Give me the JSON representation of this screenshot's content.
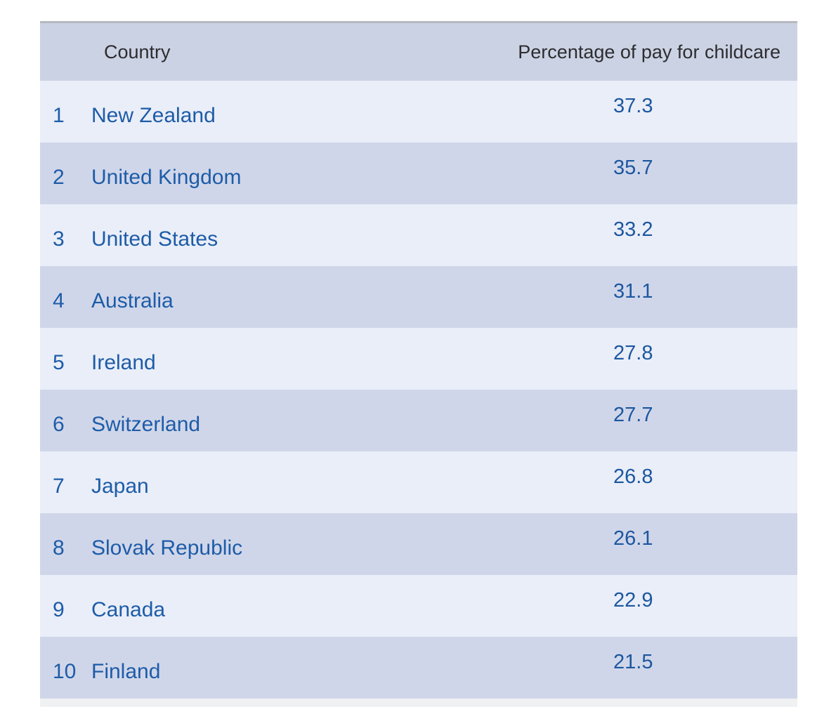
{
  "table": {
    "columns": [
      "Country",
      "Percentage of pay for childcare"
    ],
    "rows": [
      {
        "rank": "1",
        "country": "New Zealand",
        "value": "37.3"
      },
      {
        "rank": "2",
        "country": "United Kingdom",
        "value": "35.7"
      },
      {
        "rank": "3",
        "country": "United States",
        "value": "33.2"
      },
      {
        "rank": "4",
        "country": "Australia",
        "value": "31.1"
      },
      {
        "rank": "5",
        "country": "Ireland",
        "value": "27.8"
      },
      {
        "rank": "6",
        "country": "Switzerland",
        "value": "27.7"
      },
      {
        "rank": "7",
        "country": "Japan",
        "value": "26.8"
      },
      {
        "rank": "8",
        "country": "Slovak Republic",
        "value": "26.1"
      },
      {
        "rank": "9",
        "country": "Canada",
        "value": "22.9"
      },
      {
        "rank": "10",
        "country": "Finland",
        "value": "21.5"
      }
    ],
    "colors": {
      "header_bg": "#cbd2e4",
      "row_odd_bg": "#eaeef8",
      "row_even_bg": "#d0d6e9",
      "text_blue": "#1d5ca8",
      "value_blue": "#1c57a0",
      "header_text": "#2d2d2f",
      "top_rule": "#b6b9bf",
      "bottom_strip": "#f0f1f3"
    }
  },
  "chart_data": {
    "type": "table",
    "title": "",
    "columns": [
      "Country",
      "Percentage of pay for childcare"
    ],
    "ranks": [
      1,
      2,
      3,
      4,
      5,
      6,
      7,
      8,
      9,
      10
    ],
    "categories": [
      "New Zealand",
      "United Kingdom",
      "United States",
      "Australia",
      "Ireland",
      "Switzerland",
      "Japan",
      "Slovak Republic",
      "Canada",
      "Finland"
    ],
    "values": [
      37.3,
      35.7,
      33.2,
      31.1,
      27.8,
      27.7,
      26.8,
      26.1,
      22.9,
      21.5
    ]
  }
}
